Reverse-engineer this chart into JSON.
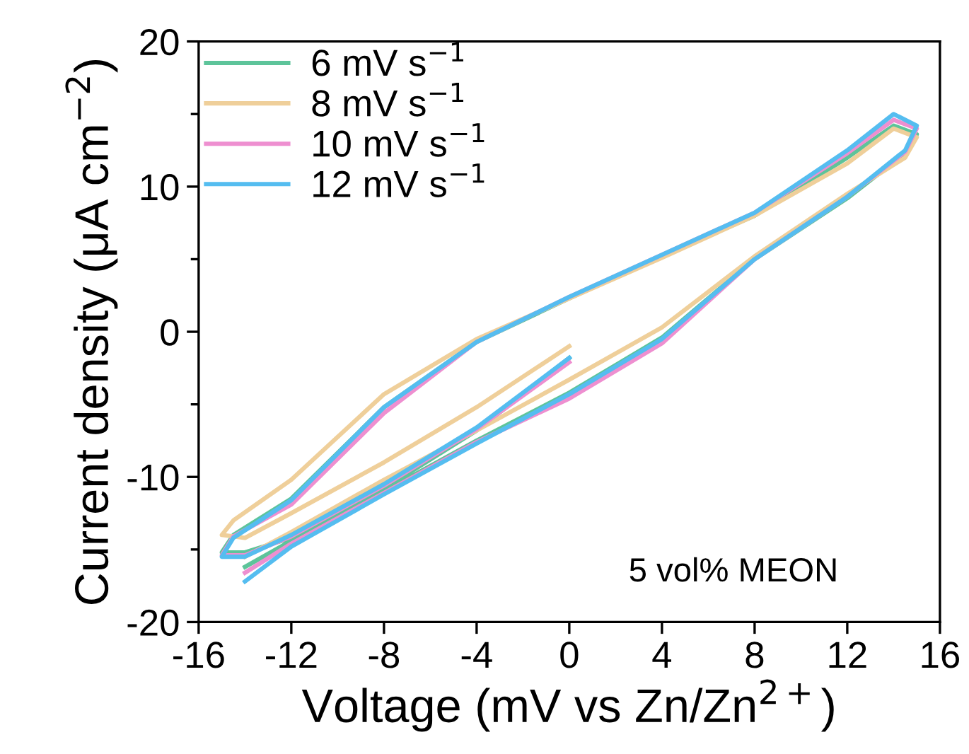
{
  "chart_data": {
    "type": "line",
    "xlabel": "Voltage (mV vs Zn/Zn$^{2+}$)",
    "ylabel": "Current density (μA cm$^{−2}$)",
    "annotations": [
      "5 vol% MEON"
    ],
    "xlim": [
      -16,
      16
    ],
    "xticks": [
      -16,
      -12,
      -8,
      -4,
      0,
      4,
      8,
      12,
      16
    ],
    "ylim": [
      -20,
      20
    ],
    "yticks": [
      -20,
      -10,
      0,
      10,
      20
    ],
    "legend": "top left",
    "grid": false,
    "marker": "none",
    "line_style": "solid",
    "x": [
      0,
      -4,
      -8,
      -12,
      -14,
      -15,
      -14.5,
      -12,
      -8,
      -4,
      0,
      4,
      8,
      12,
      14,
      15,
      14.5,
      12,
      8,
      4,
      0,
      -4,
      -8,
      -12,
      -14
    ],
    "series": [
      {
        "name": "6 mV s$^{−1}$",
        "color": "#5dc49a",
        "values": [
          -1.8,
          -6.8,
          -10.8,
          -14.2,
          -15.2,
          -15.2,
          -14.0,
          -11.5,
          -5.2,
          -0.7,
          2.3,
          5.2,
          8.0,
          12.0,
          14.2,
          13.6,
          12.3,
          9.2,
          5.0,
          -0.4,
          -4.2,
          -7.5,
          -11.0,
          -14.4,
          -16.2
        ]
      },
      {
        "name": "8 mV s$^{−1}$",
        "color": "#efcf9a",
        "values": [
          -1.0,
          -5.2,
          -9.0,
          -12.5,
          -14.2,
          -14.0,
          -13.0,
          -10.2,
          -4.3,
          -0.5,
          2.3,
          5.1,
          8.0,
          11.6,
          14.0,
          13.4,
          12.0,
          9.5,
          5.2,
          0.3,
          -3.3,
          -6.8,
          -10.2,
          -13.8,
          -15.5
        ]
      },
      {
        "name": "10 mV s$^{−1}$",
        "color": "#ee8fd0",
        "values": [
          -2.1,
          -6.7,
          -10.6,
          -14.1,
          -15.4,
          -15.4,
          -14.1,
          -11.9,
          -5.6,
          -0.7,
          2.4,
          5.3,
          8.2,
          12.3,
          14.6,
          14.0,
          12.4,
          9.3,
          5.0,
          -0.8,
          -4.6,
          -7.6,
          -11.1,
          -14.6,
          -16.6
        ]
      },
      {
        "name": "12 mV s$^{−1}$",
        "color": "#55bdf0",
        "values": [
          -1.8,
          -6.6,
          -10.5,
          -14.0,
          -15.5,
          -15.5,
          -14.2,
          -11.6,
          -5.2,
          -0.7,
          2.4,
          5.3,
          8.2,
          12.5,
          15.0,
          14.2,
          12.5,
          9.3,
          5.0,
          -0.5,
          -4.3,
          -7.7,
          -11.2,
          -14.8,
          -17.2
        ]
      }
    ]
  }
}
